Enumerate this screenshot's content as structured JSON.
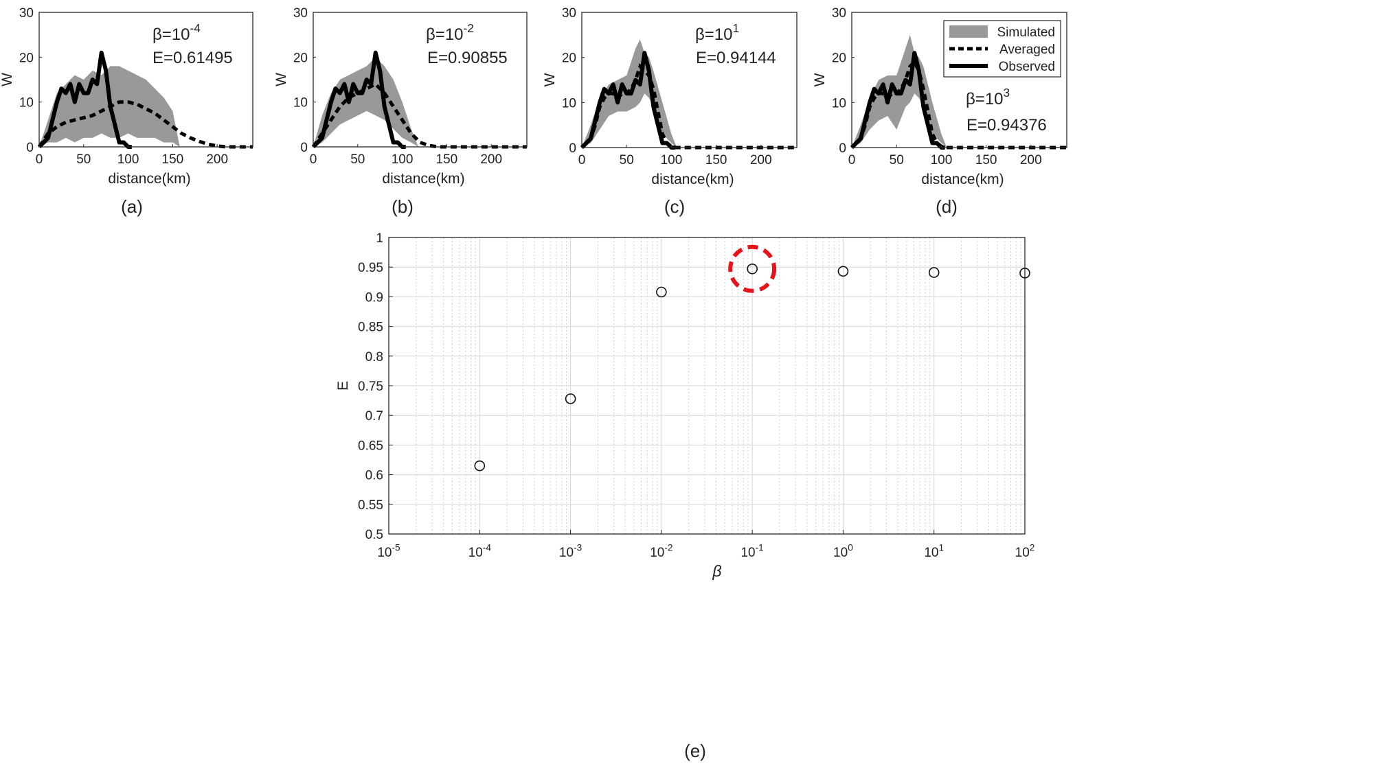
{
  "figure": {
    "panel_labels": [
      "(a)",
      "(b)",
      "(c)",
      "(d)",
      "(e)"
    ],
    "colors": {
      "simulated": "#999999",
      "averaged": "#000000",
      "observed": "#000000",
      "highlight": "#e8141b"
    }
  },
  "chart_data": [
    {
      "type": "area",
      "panel": "(a)",
      "xlabel": "distance(km)",
      "ylabel": "W",
      "xlim": [
        0,
        240
      ],
      "ylim": [
        0,
        30
      ],
      "xticks": [
        "0",
        "50",
        "100",
        "150",
        "200"
      ],
      "yticks": [
        "0",
        "10",
        "20",
        "30"
      ],
      "annotation": {
        "beta_label": "β=10",
        "beta_exp": "-4",
        "e_label": "E=0.61495"
      },
      "series": [
        {
          "name": "Simulated",
          "x": [
            0,
            10,
            20,
            30,
            40,
            50,
            60,
            70,
            80,
            90,
            100,
            110,
            120,
            130,
            140,
            150,
            158
          ],
          "lower": [
            0,
            1,
            1,
            2,
            1,
            2,
            2,
            3,
            2,
            2,
            3,
            2,
            2,
            2,
            1,
            1,
            0
          ],
          "upper": [
            0,
            6,
            12,
            14,
            16,
            15,
            17,
            16,
            18,
            18,
            17,
            16,
            15,
            13,
            11,
            8,
            0
          ]
        },
        {
          "name": "Averaged",
          "x": [
            0,
            10,
            20,
            30,
            40,
            50,
            60,
            70,
            80,
            90,
            100,
            110,
            120,
            130,
            140,
            150,
            160,
            170,
            180,
            190,
            200,
            210,
            220,
            240
          ],
          "y": [
            0,
            3,
            4.5,
            5.5,
            6,
            6.5,
            7,
            8,
            9,
            10,
            10,
            9.5,
            8.5,
            7.5,
            6,
            4.5,
            3,
            2,
            1.2,
            0.6,
            0.2,
            0,
            0,
            0
          ]
        },
        {
          "name": "Observed",
          "x": [
            0,
            5,
            10,
            15,
            20,
            25,
            30,
            35,
            40,
            45,
            50,
            55,
            60,
            65,
            70,
            75,
            80,
            85,
            90,
            95,
            100,
            104
          ],
          "y": [
            0,
            1,
            2,
            6,
            10,
            13,
            12,
            14,
            10,
            14,
            12,
            12,
            15,
            14,
            21,
            17,
            9,
            5,
            1,
            1,
            0,
            0
          ]
        }
      ]
    },
    {
      "type": "area",
      "panel": "(b)",
      "xlabel": "distance(km)",
      "ylabel": "W",
      "xlim": [
        0,
        240
      ],
      "ylim": [
        0,
        30
      ],
      "xticks": [
        "0",
        "50",
        "100",
        "150",
        "200"
      ],
      "yticks": [
        "0",
        "10",
        "20",
        "30"
      ],
      "annotation": {
        "beta_label": "β=10",
        "beta_exp": "-2",
        "e_label": "E=0.90855"
      },
      "series": [
        {
          "name": "Simulated",
          "x": [
            0,
            10,
            20,
            30,
            40,
            50,
            60,
            70,
            80,
            90,
            100,
            110,
            118
          ],
          "lower": [
            0,
            1,
            3,
            5,
            6,
            7,
            8,
            7,
            6,
            4,
            2,
            1,
            0
          ],
          "upper": [
            0,
            7,
            12,
            15,
            16,
            17,
            18,
            20,
            18,
            15,
            10,
            4,
            0
          ]
        },
        {
          "name": "Averaged",
          "x": [
            0,
            10,
            20,
            30,
            40,
            50,
            60,
            70,
            80,
            90,
            100,
            110,
            120,
            130,
            140,
            150,
            160,
            170,
            180,
            190,
            200,
            210,
            220,
            240
          ],
          "y": [
            0,
            3,
            6,
            9,
            11,
            12,
            13,
            14,
            12,
            9,
            6,
            3,
            1,
            0.3,
            0,
            0,
            0,
            0,
            0,
            0,
            0,
            0,
            0,
            0
          ]
        },
        {
          "name": "Observed",
          "x": [
            0,
            5,
            10,
            15,
            20,
            25,
            30,
            35,
            40,
            45,
            50,
            55,
            60,
            65,
            70,
            75,
            80,
            85,
            90,
            95,
            100,
            104
          ],
          "y": [
            0,
            1,
            2,
            6,
            10,
            13,
            12,
            14,
            10,
            14,
            12,
            12,
            15,
            14,
            21,
            17,
            9,
            5,
            1,
            1,
            0,
            0
          ]
        }
      ]
    },
    {
      "type": "area",
      "panel": "(c)",
      "xlabel": "distance(km)",
      "ylabel": "W",
      "xlim": [
        0,
        240
      ],
      "ylim": [
        0,
        30
      ],
      "xticks": [
        "0",
        "50",
        "100",
        "150",
        "200"
      ],
      "yticks": [
        "0",
        "10",
        "20",
        "30"
      ],
      "annotation": {
        "beta_label": "β=10",
        "beta_exp": "1",
        "e_label": "E=0.94144"
      },
      "series": [
        {
          "name": "Simulated",
          "x": [
            0,
            10,
            20,
            30,
            40,
            50,
            60,
            65,
            70,
            75,
            80,
            90,
            100,
            106
          ],
          "lower": [
            0,
            1,
            4,
            7,
            8,
            8,
            9,
            10,
            12,
            11,
            9,
            3,
            1,
            0
          ],
          "upper": [
            0,
            5,
            11,
            14,
            15,
            16,
            22,
            24,
            21,
            20,
            17,
            10,
            3,
            0
          ]
        },
        {
          "name": "Averaged",
          "x": [
            0,
            5,
            10,
            15,
            20,
            25,
            30,
            35,
            40,
            45,
            50,
            55,
            60,
            65,
            70,
            75,
            80,
            85,
            90,
            95,
            100,
            105,
            110,
            240
          ],
          "y": [
            0,
            1,
            2,
            5,
            9,
            11,
            12,
            12,
            11,
            12,
            12,
            13,
            15,
            18,
            17,
            16,
            13,
            8,
            3,
            1,
            0.3,
            0,
            0,
            0
          ]
        },
        {
          "name": "Observed",
          "x": [
            0,
            5,
            10,
            15,
            20,
            25,
            30,
            35,
            40,
            45,
            50,
            55,
            60,
            65,
            70,
            75,
            80,
            85,
            90,
            95,
            100,
            104
          ],
          "y": [
            0,
            1,
            2,
            6,
            10,
            13,
            12,
            14,
            10,
            14,
            12,
            12,
            15,
            14,
            21,
            17,
            9,
            5,
            1,
            1,
            0,
            0
          ]
        }
      ]
    },
    {
      "type": "area",
      "panel": "(d)",
      "xlabel": "distance(km)",
      "ylabel": "W",
      "xlim": [
        0,
        240
      ],
      "ylim": [
        0,
        30
      ],
      "xticks": [
        "0",
        "50",
        "100",
        "150",
        "200"
      ],
      "yticks": [
        "0",
        "10",
        "20",
        "30"
      ],
      "annotation": {
        "beta_label": "β=10",
        "beta_exp": "3",
        "e_label": "E=0.94376"
      },
      "legend": {
        "position": "top-right",
        "entries": [
          "Simulated",
          "Averaged",
          "Observed"
        ]
      },
      "series": [
        {
          "name": "Simulated",
          "x": [
            0,
            10,
            20,
            30,
            40,
            50,
            60,
            65,
            70,
            75,
            80,
            90,
            100,
            106
          ],
          "lower": [
            0,
            1,
            4,
            6,
            7,
            4,
            9,
            10,
            12,
            11,
            9,
            3,
            1,
            0
          ],
          "upper": [
            0,
            5,
            11,
            15,
            16,
            16,
            22,
            25,
            21,
            20,
            18,
            10,
            3,
            0
          ]
        },
        {
          "name": "Averaged",
          "x": [
            0,
            5,
            10,
            15,
            20,
            25,
            30,
            35,
            40,
            45,
            50,
            55,
            60,
            65,
            70,
            75,
            80,
            85,
            90,
            95,
            100,
            105,
            110,
            240
          ],
          "y": [
            0,
            1,
            2,
            5,
            9,
            11,
            12,
            12,
            11,
            12,
            12,
            13,
            15,
            18,
            19,
            17,
            13,
            8,
            3,
            1,
            0.3,
            0,
            0,
            0
          ]
        },
        {
          "name": "Observed",
          "x": [
            0,
            5,
            10,
            15,
            20,
            25,
            30,
            35,
            40,
            45,
            50,
            55,
            60,
            65,
            70,
            75,
            80,
            85,
            90,
            95,
            100,
            104
          ],
          "y": [
            0,
            1,
            2,
            6,
            10,
            13,
            12,
            14,
            10,
            14,
            12,
            12,
            15,
            14,
            21,
            17,
            9,
            5,
            1,
            1,
            0,
            0
          ]
        }
      ]
    },
    {
      "type": "scatter",
      "panel": "(e)",
      "xlabel": "β",
      "ylabel": "E",
      "xscale": "log",
      "xlim": [
        1e-05,
        100
      ],
      "ylim": [
        0.5,
        1
      ],
      "xticks": [
        {
          "base": "10",
          "exp": "-5"
        },
        {
          "base": "10",
          "exp": "-4"
        },
        {
          "base": "10",
          "exp": "-3"
        },
        {
          "base": "10",
          "exp": "-2"
        },
        {
          "base": "10",
          "exp": "-1"
        },
        {
          "base": "10",
          "exp": "0"
        },
        {
          "base": "10",
          "exp": "1"
        },
        {
          "base": "10",
          "exp": "2"
        }
      ],
      "yticks": [
        "0.5",
        "0.55",
        "0.6",
        "0.65",
        "0.7",
        "0.75",
        "0.8",
        "0.85",
        "0.9",
        "0.95",
        "1"
      ],
      "grid": true,
      "points": [
        {
          "x": 0.0001,
          "y": 0.615
        },
        {
          "x": 0.001,
          "y": 0.728
        },
        {
          "x": 0.01,
          "y": 0.908
        },
        {
          "x": 0.1,
          "y": 0.947
        },
        {
          "x": 1,
          "y": 0.943
        },
        {
          "x": 10,
          "y": 0.941
        },
        {
          "x": 100,
          "y": 0.94
        }
      ],
      "highlight_point_index": 3
    }
  ]
}
